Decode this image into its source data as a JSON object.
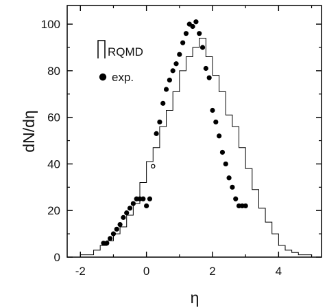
{
  "chart_data": {
    "type": "line",
    "xlabel": "η",
    "ylabel": "dN/dη",
    "xlim": [
      -2.4,
      5.3
    ],
    "ylim": [
      0,
      108
    ],
    "xticks": [
      -2,
      0,
      2,
      4
    ],
    "xtick_labels": [
      "-2",
      "0",
      "2",
      "4"
    ],
    "x_minor_ticks": [
      -1,
      1,
      3,
      5
    ],
    "yticks": [
      0,
      20,
      40,
      60,
      80,
      100
    ],
    "ytick_labels": [
      "0",
      "20",
      "40",
      "60",
      "80",
      "100"
    ],
    "y_minor_ticks": [
      10,
      30,
      50,
      70,
      90
    ],
    "legend": {
      "position": "upper-left",
      "entries": [
        "RQMD",
        "exp."
      ]
    },
    "series": [
      {
        "name": "RQMD",
        "style": "histogram-step",
        "bin_edges": [
          -2.0,
          -1.8,
          -1.6,
          -1.4,
          -1.2,
          -1.0,
          -0.8,
          -0.6,
          -0.4,
          -0.2,
          0.0,
          0.2,
          0.4,
          0.6,
          0.8,
          1.0,
          1.2,
          1.4,
          1.6,
          1.8,
          2.0,
          2.2,
          2.4,
          2.6,
          2.8,
          3.0,
          3.2,
          3.4,
          3.6,
          3.8,
          4.0,
          4.2,
          4.4,
          4.6,
          4.8,
          5.0
        ],
        "values": [
          1,
          1,
          3,
          5,
          7,
          10,
          13,
          18,
          23,
          32,
          41,
          47,
          56,
          63,
          71,
          80,
          86,
          90,
          94,
          86,
          78,
          71,
          61,
          56,
          47,
          38,
          29,
          21,
          15,
          10,
          5,
          3,
          2,
          1,
          1
        ]
      },
      {
        "name": "exp.",
        "style": "filled-circles",
        "x": [
          -1.3,
          -1.2,
          -1.1,
          -1.0,
          -0.9,
          -0.8,
          -0.7,
          -0.6,
          -0.5,
          -0.4,
          -0.3,
          -0.2,
          -0.1,
          0.0,
          0.1,
          0.3,
          0.4,
          0.5,
          0.6,
          0.7,
          0.8,
          0.9,
          1.0,
          1.1,
          1.2,
          1.3,
          1.4,
          1.5,
          1.6,
          1.7,
          1.8,
          1.9,
          2.0,
          2.1,
          2.2,
          2.3,
          2.4,
          2.5,
          2.6,
          2.7,
          2.8,
          2.9,
          3.0
        ],
        "y": [
          6,
          6,
          8,
          10,
          12,
          14,
          17,
          19,
          21,
          23,
          25,
          25,
          25,
          22,
          25,
          53,
          58,
          66,
          72,
          76,
          80,
          83,
          87,
          92,
          96,
          100,
          99,
          101,
          96,
          90,
          81,
          77,
          63,
          58,
          52,
          45,
          40,
          34,
          30,
          25,
          22,
          22,
          22
        ]
      },
      {
        "name": "",
        "style": "open-circle",
        "x": [
          0.2
        ],
        "y": [
          39
        ]
      }
    ]
  }
}
